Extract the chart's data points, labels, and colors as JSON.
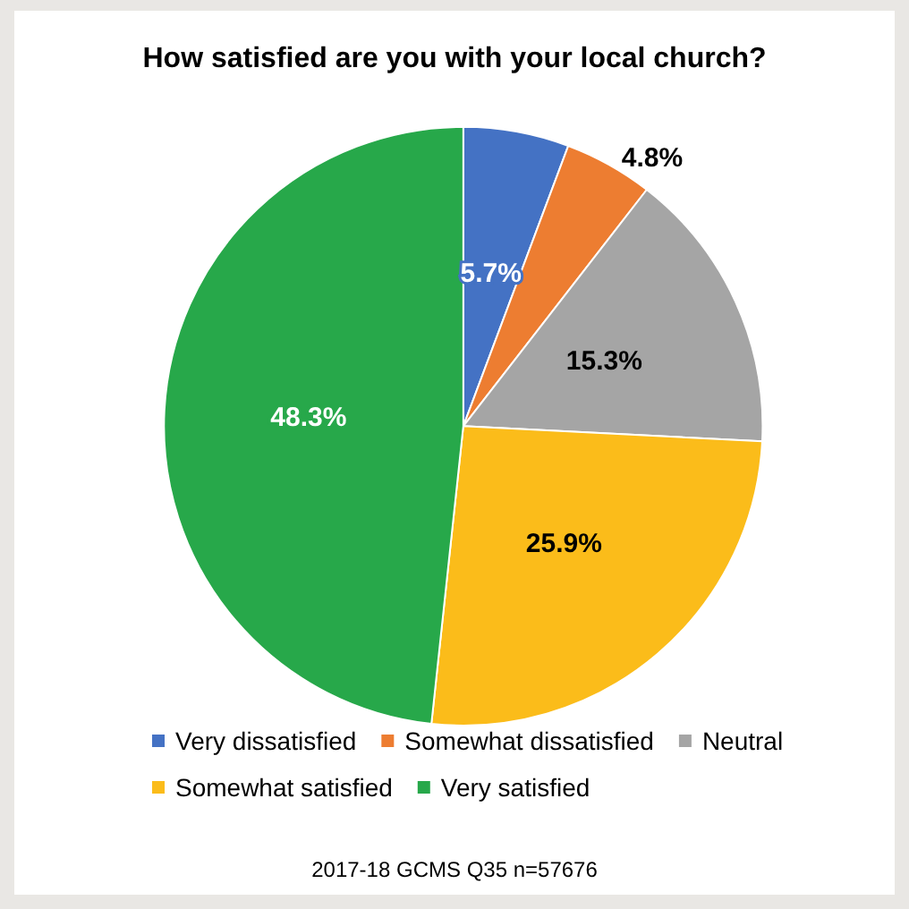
{
  "chart_data": {
    "type": "pie",
    "title": "How satisfied are you with your local church?",
    "categories": [
      "Very dissatisfied",
      "Somewhat dissatisfied",
      "Neutral",
      "Somewhat satisfied",
      "Very satisfied"
    ],
    "values": [
      5.7,
      4.8,
      15.3,
      25.9,
      48.3
    ],
    "colors": [
      "#4472c4",
      "#ed7d31",
      "#a5a5a5",
      "#fbbc1a",
      "#27a84a"
    ],
    "value_labels": [
      "5.7%",
      "4.8%",
      "15.3%",
      "25.9%",
      "48.3%"
    ],
    "legend": "bottom",
    "annotations": [
      "2017-18 GCMS Q35 n=57676"
    ]
  }
}
